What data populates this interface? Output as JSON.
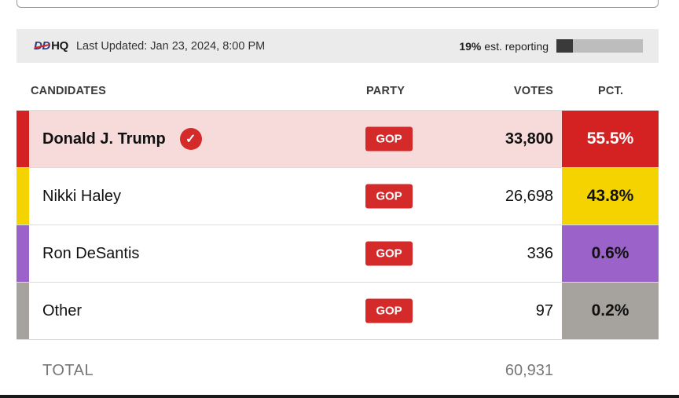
{
  "status": {
    "logo_mark": "DD",
    "logo_text": "HQ",
    "last_updated": "Last Updated: Jan 23, 2024, 8:00 PM",
    "reporting_pct": "19%",
    "reporting_text": "est. reporting",
    "reporting_fraction": 0.19
  },
  "headers": {
    "candidates": "CANDIDATES",
    "party": "PARTY",
    "votes": "VOTES",
    "pct": "PCT."
  },
  "candidates": [
    {
      "name": "Donald J. Trump",
      "party": "GOP",
      "votes": "33,800",
      "pct": "55.5%",
      "winner": true,
      "color": "#d42121",
      "pct_text_color": "#ffffff"
    },
    {
      "name": "Nikki Haley",
      "party": "GOP",
      "votes": "26,698",
      "pct": "43.8%",
      "winner": false,
      "color": "#f5d300",
      "pct_text_color": "#111111"
    },
    {
      "name": "Ron DeSantis",
      "party": "GOP",
      "votes": "336",
      "pct": "0.6%",
      "winner": false,
      "color": "#9b63c9",
      "pct_text_color": "#111111"
    },
    {
      "name": "Other",
      "party": "GOP",
      "votes": "97",
      "pct": "0.2%",
      "winner": false,
      "color": "#a6a39f",
      "pct_text_color": "#111111"
    }
  ],
  "total": {
    "label": "TOTAL",
    "votes": "60,931"
  },
  "colors": {
    "party_badge": "#d42a2a",
    "leader_row_bg": "#f7dada",
    "status_bg": "#ebebeb"
  },
  "icons": {
    "winner": "checkmark-icon"
  }
}
